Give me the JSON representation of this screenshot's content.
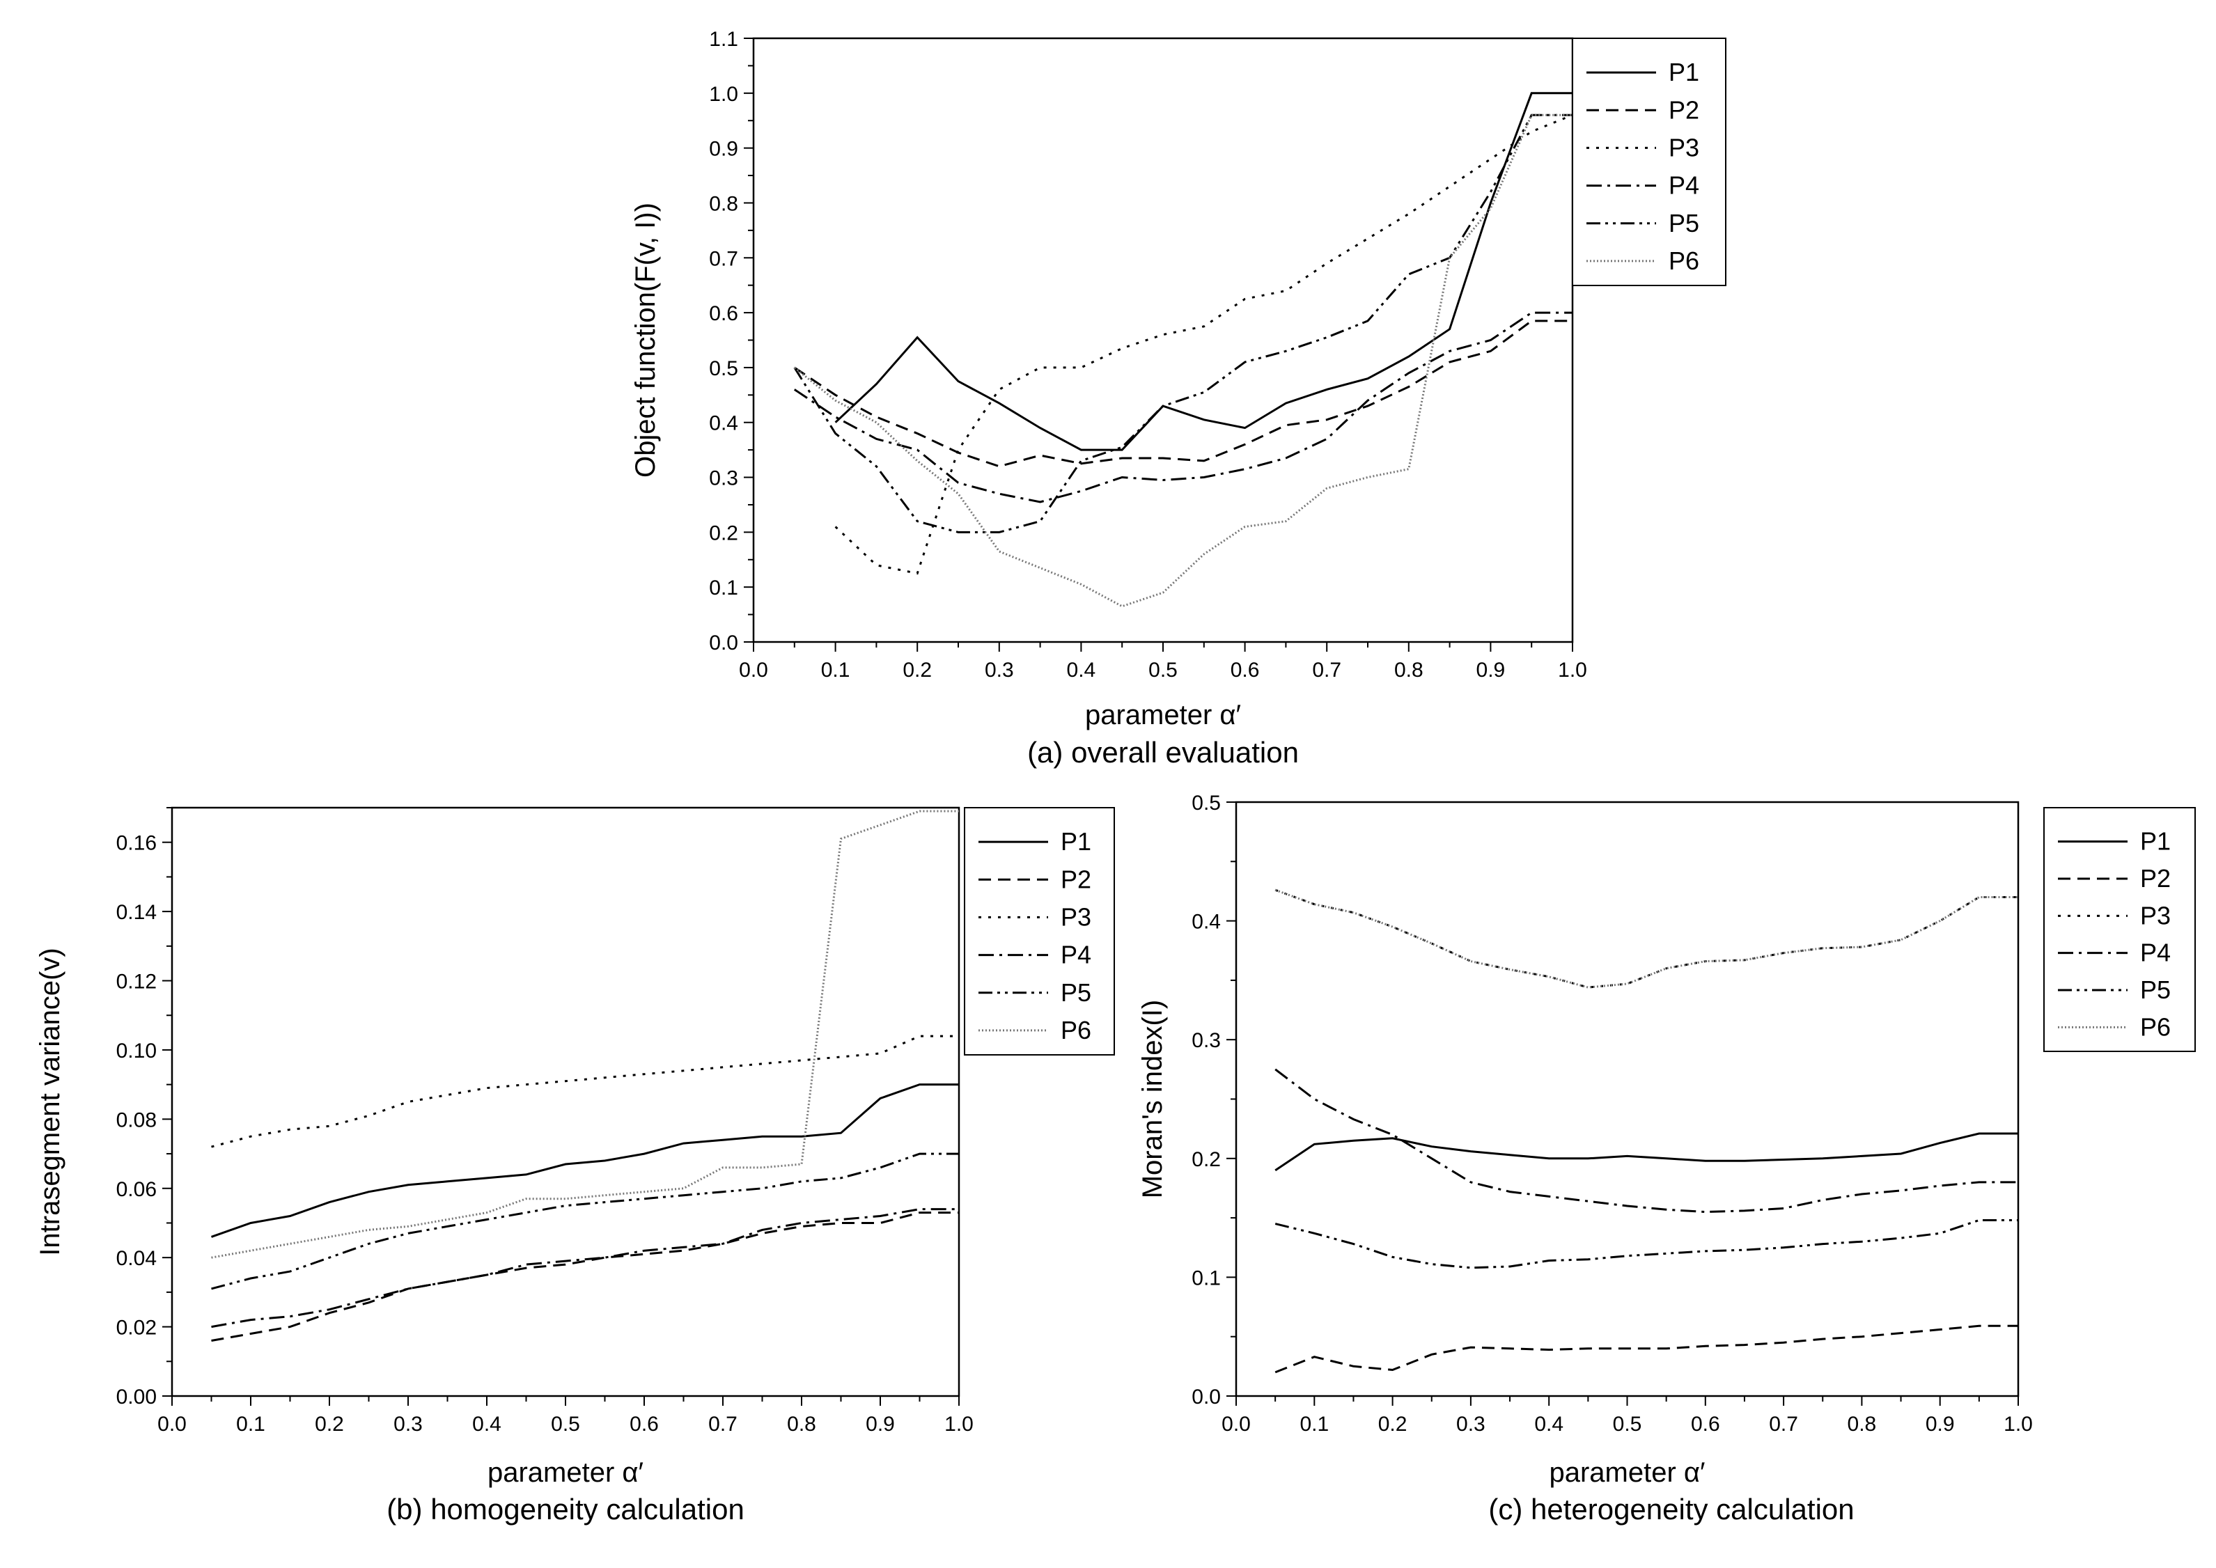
{
  "chart_data": [
    {
      "type": "line",
      "caption": "(a) overall evaluation",
      "xlabel": "parameter α′",
      "ylabel": "Object function(F(v, I))",
      "xlim": [
        0.0,
        1.0
      ],
      "ylim": [
        0.0,
        1.1
      ],
      "xticks": [
        "0.0",
        "0.1",
        "0.2",
        "0.3",
        "0.4",
        "0.5",
        "0.6",
        "0.7",
        "0.8",
        "0.9",
        "1.0"
      ],
      "yticks": [
        "0.0",
        "0.1",
        "0.2",
        "0.3",
        "0.4",
        "0.5",
        "0.6",
        "0.7",
        "0.8",
        "0.9",
        "1.0",
        "1.1"
      ],
      "legend_position": "right",
      "series": [
        {
          "name": "P1",
          "x": [
            0.1,
            0.15,
            0.2,
            0.25,
            0.3,
            0.35,
            0.4,
            0.45,
            0.5,
            0.55,
            0.6,
            0.65,
            0.7,
            0.75,
            0.8,
            0.85,
            0.9,
            0.95,
            1.0
          ],
          "values": [
            0.4,
            0.47,
            0.555,
            0.475,
            0.435,
            0.39,
            0.35,
            0.35,
            0.43,
            0.405,
            0.39,
            0.435,
            0.46,
            0.48,
            0.52,
            0.57,
            0.8,
            1.0,
            1.0
          ]
        },
        {
          "name": "P2",
          "x": [
            0.05,
            0.1,
            0.15,
            0.2,
            0.25,
            0.3,
            0.35,
            0.4,
            0.45,
            0.5,
            0.55,
            0.6,
            0.65,
            0.7,
            0.75,
            0.8,
            0.85,
            0.9,
            0.95,
            1.0
          ],
          "values": [
            0.5,
            0.45,
            0.41,
            0.38,
            0.345,
            0.32,
            0.34,
            0.325,
            0.335,
            0.335,
            0.33,
            0.36,
            0.395,
            0.405,
            0.43,
            0.465,
            0.51,
            0.53,
            0.585,
            0.585
          ]
        },
        {
          "name": "P3",
          "x": [
            0.1,
            0.15,
            0.2,
            0.25,
            0.3,
            0.35,
            0.4,
            0.45,
            0.5,
            0.55,
            0.6,
            0.65,
            0.7,
            0.75,
            0.8,
            0.85,
            0.9,
            0.95,
            1.0
          ],
          "values": [
            0.21,
            0.14,
            0.125,
            0.35,
            0.46,
            0.5,
            0.5,
            0.535,
            0.56,
            0.575,
            0.625,
            0.64,
            0.69,
            0.735,
            0.78,
            0.83,
            0.88,
            0.93,
            0.96
          ]
        },
        {
          "name": "P4",
          "x": [
            0.05,
            0.1,
            0.15,
            0.2,
            0.25,
            0.3,
            0.35,
            0.4,
            0.45,
            0.5,
            0.55,
            0.6,
            0.65,
            0.7,
            0.75,
            0.8,
            0.85,
            0.9,
            0.95,
            1.0
          ],
          "values": [
            0.46,
            0.41,
            0.37,
            0.35,
            0.29,
            0.27,
            0.255,
            0.275,
            0.3,
            0.295,
            0.3,
            0.315,
            0.335,
            0.37,
            0.44,
            0.49,
            0.53,
            0.55,
            0.6,
            0.6
          ]
        },
        {
          "name": "P5",
          "x": [
            0.05,
            0.1,
            0.15,
            0.2,
            0.25,
            0.3,
            0.35,
            0.4,
            0.45,
            0.5,
            0.55,
            0.6,
            0.65,
            0.7,
            0.75,
            0.8,
            0.85,
            0.9,
            0.95,
            1.0
          ],
          "values": [
            0.5,
            0.38,
            0.32,
            0.22,
            0.2,
            0.2,
            0.22,
            0.33,
            0.355,
            0.43,
            0.455,
            0.51,
            0.53,
            0.555,
            0.585,
            0.67,
            0.7,
            0.82,
            0.96,
            0.96
          ]
        },
        {
          "name": "P6",
          "x": [
            0.05,
            0.1,
            0.15,
            0.2,
            0.25,
            0.3,
            0.35,
            0.4,
            0.45,
            0.5,
            0.55,
            0.6,
            0.65,
            0.7,
            0.75,
            0.8,
            0.85,
            0.9,
            0.95,
            1.0
          ],
          "values": [
            0.5,
            0.44,
            0.4,
            0.33,
            0.27,
            0.165,
            0.135,
            0.105,
            0.065,
            0.09,
            0.16,
            0.21,
            0.22,
            0.28,
            0.3,
            0.315,
            0.7,
            0.79,
            0.96,
            0.96
          ]
        }
      ]
    },
    {
      "type": "line",
      "caption": "(b) homogeneity calculation",
      "xlabel": "parameter α′",
      "ylabel": "Intrasegment  variance(v)",
      "xlim": [
        0.0,
        1.0
      ],
      "ylim": [
        0.0,
        0.17
      ],
      "xticks": [
        "0.0",
        "0.1",
        "0.2",
        "0.3",
        "0.4",
        "0.5",
        "0.6",
        "0.7",
        "0.8",
        "0.9",
        "1.0"
      ],
      "yticks": [
        "0.00",
        "0.02",
        "0.04",
        "0.06",
        "0.08",
        "0.10",
        "0.12",
        "0.14",
        "0.16"
      ],
      "legend_position": "right",
      "series": [
        {
          "name": "P1",
          "x": [
            0.05,
            0.1,
            0.15,
            0.2,
            0.25,
            0.3,
            0.35,
            0.4,
            0.45,
            0.5,
            0.55,
            0.6,
            0.65,
            0.7,
            0.75,
            0.8,
            0.85,
            0.9,
            0.95,
            1.0
          ],
          "values": [
            0.046,
            0.05,
            0.052,
            0.056,
            0.059,
            0.061,
            0.062,
            0.063,
            0.064,
            0.067,
            0.068,
            0.07,
            0.073,
            0.074,
            0.075,
            0.075,
            0.076,
            0.086,
            0.09,
            0.09
          ]
        },
        {
          "name": "P2",
          "x": [
            0.05,
            0.1,
            0.15,
            0.2,
            0.25,
            0.3,
            0.35,
            0.4,
            0.45,
            0.5,
            0.55,
            0.6,
            0.65,
            0.7,
            0.75,
            0.8,
            0.85,
            0.9,
            0.95,
            1.0
          ],
          "values": [
            0.016,
            0.018,
            0.02,
            0.024,
            0.027,
            0.031,
            0.033,
            0.035,
            0.037,
            0.038,
            0.04,
            0.041,
            0.042,
            0.044,
            0.047,
            0.049,
            0.05,
            0.05,
            0.053,
            0.053
          ]
        },
        {
          "name": "P3",
          "x": [
            0.05,
            0.1,
            0.15,
            0.2,
            0.25,
            0.3,
            0.35,
            0.4,
            0.45,
            0.5,
            0.55,
            0.6,
            0.65,
            0.7,
            0.75,
            0.8,
            0.85,
            0.9,
            0.95,
            1.0
          ],
          "values": [
            0.072,
            0.075,
            0.077,
            0.078,
            0.081,
            0.085,
            0.087,
            0.089,
            0.09,
            0.091,
            0.092,
            0.093,
            0.094,
            0.095,
            0.096,
            0.097,
            0.098,
            0.099,
            0.104,
            0.104
          ]
        },
        {
          "name": "P4",
          "x": [
            0.05,
            0.1,
            0.15,
            0.2,
            0.25,
            0.3,
            0.35,
            0.4,
            0.45,
            0.5,
            0.55,
            0.6,
            0.65,
            0.7,
            0.75,
            0.8,
            0.85,
            0.9,
            0.95,
            1.0
          ],
          "values": [
            0.02,
            0.022,
            0.023,
            0.025,
            0.028,
            0.031,
            0.033,
            0.035,
            0.038,
            0.039,
            0.04,
            0.042,
            0.043,
            0.044,
            0.048,
            0.05,
            0.051,
            0.052,
            0.054,
            0.054
          ]
        },
        {
          "name": "P5",
          "x": [
            0.05,
            0.1,
            0.15,
            0.2,
            0.25,
            0.3,
            0.35,
            0.4,
            0.45,
            0.5,
            0.55,
            0.6,
            0.65,
            0.7,
            0.75,
            0.8,
            0.85,
            0.9,
            0.95,
            1.0
          ],
          "values": [
            0.031,
            0.034,
            0.036,
            0.04,
            0.044,
            0.047,
            0.049,
            0.051,
            0.053,
            0.055,
            0.056,
            0.057,
            0.058,
            0.059,
            0.06,
            0.062,
            0.063,
            0.066,
            0.07,
            0.07
          ]
        },
        {
          "name": "P6",
          "x": [
            0.05,
            0.1,
            0.15,
            0.2,
            0.25,
            0.3,
            0.35,
            0.4,
            0.45,
            0.5,
            0.55,
            0.6,
            0.65,
            0.7,
            0.75,
            0.8,
            0.85,
            0.9,
            0.95,
            1.0
          ],
          "values": [
            0.04,
            0.042,
            0.044,
            0.046,
            0.048,
            0.049,
            0.051,
            0.053,
            0.057,
            0.057,
            0.058,
            0.059,
            0.06,
            0.066,
            0.066,
            0.067,
            0.161,
            0.165,
            0.169,
            0.169
          ]
        }
      ]
    },
    {
      "type": "line",
      "caption": "(c) heterogeneity calculation",
      "xlabel": "parameter α′",
      "ylabel": "Moran's index(I)",
      "xlim": [
        0.0,
        1.0
      ],
      "ylim": [
        0.0,
        0.5
      ],
      "xticks": [
        "0.0",
        "0.1",
        "0.2",
        "0.3",
        "0.4",
        "0.5",
        "0.6",
        "0.7",
        "0.8",
        "0.9",
        "1.0"
      ],
      "yticks": [
        "0.0",
        "0.1",
        "0.2",
        "0.3",
        "0.4",
        "0.5"
      ],
      "legend_position": "right",
      "series": [
        {
          "name": "P1",
          "x": [
            0.05,
            0.1,
            0.15,
            0.2,
            0.25,
            0.3,
            0.35,
            0.4,
            0.45,
            0.5,
            0.55,
            0.6,
            0.65,
            0.7,
            0.75,
            0.8,
            0.85,
            0.9,
            0.95,
            1.0
          ],
          "values": [
            0.19,
            0.212,
            0.215,
            0.217,
            0.21,
            0.206,
            0.203,
            0.2,
            0.2,
            0.202,
            0.2,
            0.198,
            0.198,
            0.199,
            0.2,
            0.202,
            0.204,
            0.213,
            0.221,
            0.221
          ]
        },
        {
          "name": "P2",
          "x": [
            0.05,
            0.1,
            0.15,
            0.2,
            0.25,
            0.3,
            0.35,
            0.4,
            0.45,
            0.5,
            0.55,
            0.6,
            0.65,
            0.7,
            0.75,
            0.8,
            0.85,
            0.9,
            0.95,
            1.0
          ],
          "values": [
            0.02,
            0.033,
            0.025,
            0.022,
            0.035,
            0.041,
            0.04,
            0.039,
            0.04,
            0.04,
            0.04,
            0.042,
            0.043,
            0.045,
            0.048,
            0.05,
            0.053,
            0.056,
            0.059,
            0.059
          ]
        },
        {
          "name": "P3",
          "x": [
            0.05,
            0.1,
            0.15,
            0.2,
            0.25,
            0.3,
            0.35,
            0.4,
            0.45,
            0.5,
            0.55,
            0.6,
            0.65,
            0.7,
            0.75,
            0.8,
            0.85,
            0.9,
            0.95,
            1.0
          ],
          "values": [
            0.426,
            0.414,
            0.407,
            0.395,
            0.381,
            0.366,
            0.359,
            0.353,
            0.344,
            0.347,
            0.36,
            0.366,
            0.367,
            0.373,
            0.377,
            0.378,
            0.384,
            0.4,
            0.42,
            0.42
          ]
        },
        {
          "name": "P4",
          "x": [
            0.05,
            0.1,
            0.15,
            0.2,
            0.25,
            0.3,
            0.35,
            0.4,
            0.45,
            0.5,
            0.55,
            0.6,
            0.65,
            0.7,
            0.75,
            0.8,
            0.85,
            0.9,
            0.95,
            1.0
          ],
          "values": [
            0.275,
            0.25,
            0.233,
            0.22,
            0.2,
            0.18,
            0.172,
            0.168,
            0.164,
            0.16,
            0.157,
            0.155,
            0.156,
            0.158,
            0.165,
            0.17,
            0.173,
            0.177,
            0.18,
            0.18
          ]
        },
        {
          "name": "P5",
          "x": [
            0.05,
            0.1,
            0.15,
            0.2,
            0.25,
            0.3,
            0.35,
            0.4,
            0.45,
            0.5,
            0.55,
            0.6,
            0.65,
            0.7,
            0.75,
            0.8,
            0.85,
            0.9,
            0.95,
            1.0
          ],
          "values": [
            0.145,
            0.137,
            0.128,
            0.117,
            0.111,
            0.108,
            0.109,
            0.114,
            0.115,
            0.118,
            0.12,
            0.122,
            0.123,
            0.125,
            0.128,
            0.13,
            0.133,
            0.137,
            0.148,
            0.148
          ]
        },
        {
          "name": "P6",
          "x": [
            0.05,
            0.1,
            0.15,
            0.2,
            0.25,
            0.3,
            0.35,
            0.4,
            0.45,
            0.5,
            0.55,
            0.6,
            0.65,
            0.7,
            0.75,
            0.8,
            0.85,
            0.9,
            0.95,
            1.0
          ],
          "values": [
            0.426,
            0.414,
            0.407,
            0.395,
            0.381,
            0.366,
            0.359,
            0.353,
            0.344,
            0.347,
            0.36,
            0.366,
            0.367,
            0.373,
            0.377,
            0.378,
            0.384,
            0.4,
            0.42,
            0.42
          ]
        }
      ]
    }
  ],
  "styles": {
    "P1": {
      "color": "#000000",
      "dash": "none"
    },
    "P2": {
      "color": "#000000",
      "dash": "18,10"
    },
    "P3": {
      "color": "#000000",
      "dash": "4,10"
    },
    "P4": {
      "color": "#000000",
      "dash": "22,8,4,8"
    },
    "P5": {
      "color": "#000000",
      "dash": "20,7,4,7,4,7"
    },
    "P6": {
      "color": "#777777",
      "dash": "2,3"
    }
  }
}
